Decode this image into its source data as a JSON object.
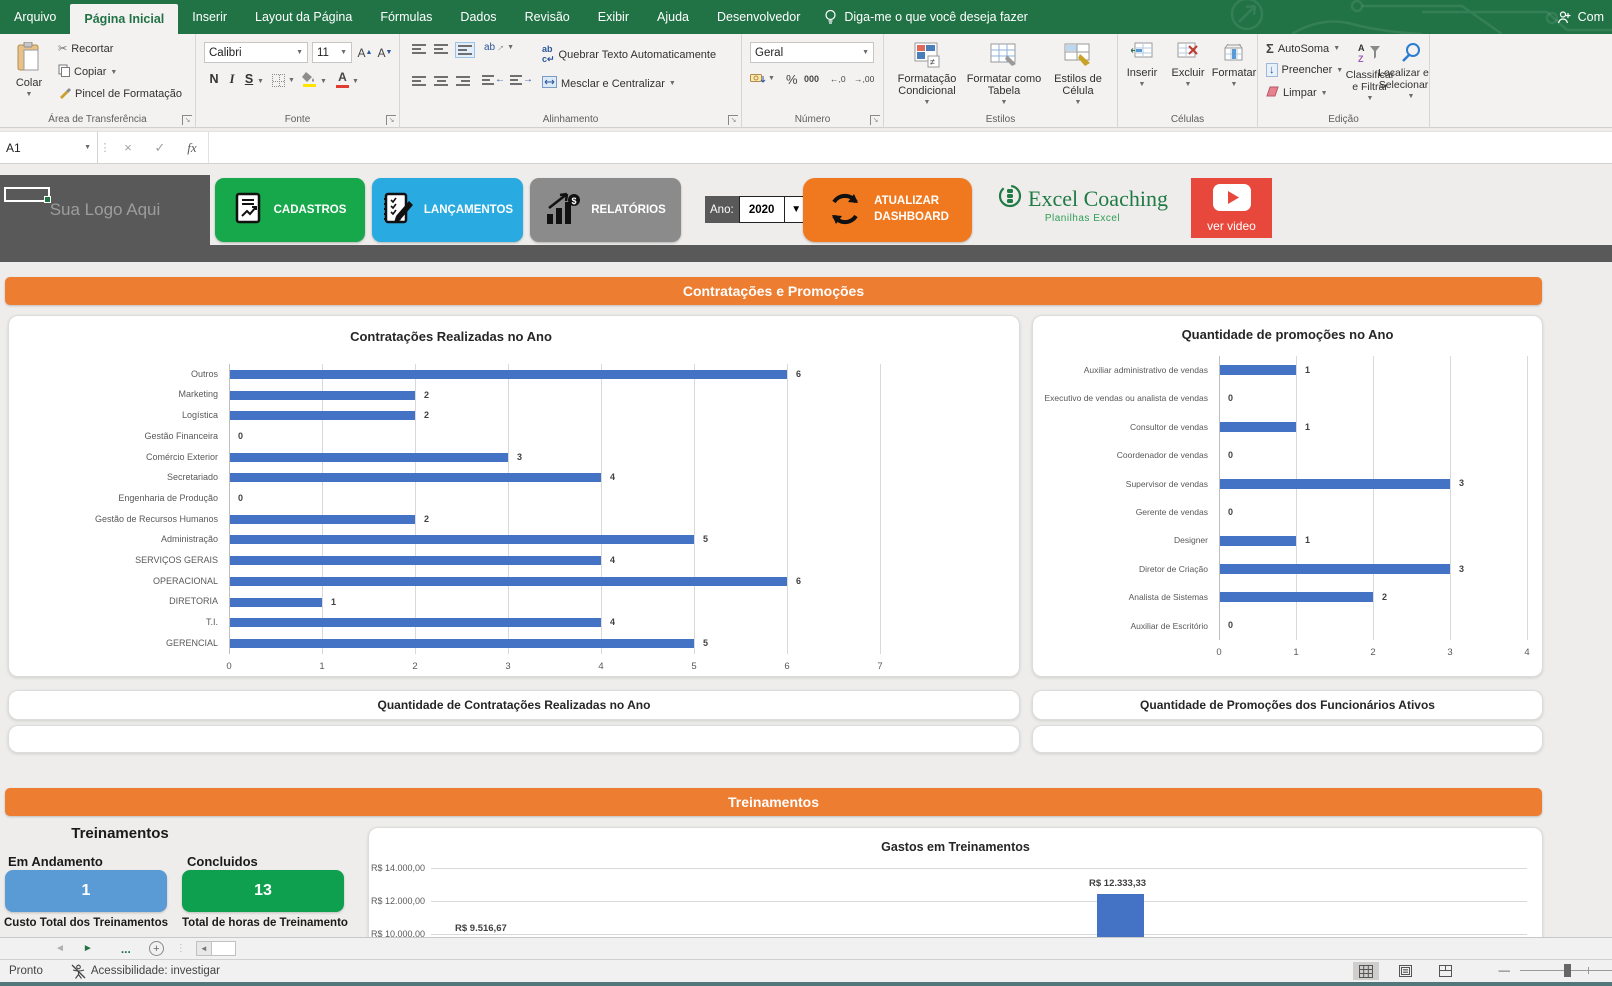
{
  "colors": {
    "excel_green": "#217346",
    "orange_banner": "#ED7D31",
    "bar_blue": "#4472C4",
    "dark_gray": "#595959",
    "btn_green": "#17A84B",
    "btn_blue": "#29ABE2",
    "btn_gray": "#8B8B8B",
    "btn_orange": "#F0791F",
    "btn_red": "#E8483C",
    "stat_blue": "#5B9BD5",
    "stat_green": "#0EA04E"
  },
  "titlebar": {
    "tabs": [
      "Arquivo",
      "Página Inicial",
      "Inserir",
      "Layout da Página",
      "Fórmulas",
      "Dados",
      "Revisão",
      "Exibir",
      "Ajuda",
      "Desenvolvedor"
    ],
    "active_tab": "Página Inicial",
    "tell_me": "Diga-me o que você deseja fazer",
    "share": "Com"
  },
  "ribbon": {
    "clipboard": {
      "paste": "Colar",
      "cut": "Recortar",
      "copy": "Copiar",
      "painter": "Pincel de Formatação",
      "label": "Área de Transferência"
    },
    "font": {
      "family": "Calibri",
      "size": "11",
      "bold": "N",
      "italic": "I",
      "underline": "S",
      "label": "Fonte"
    },
    "alignment": {
      "wrap": "Quebrar Texto Automaticamente",
      "merge": "Mesclar e Centralizar",
      "label": "Alinhamento"
    },
    "number": {
      "format": "Geral",
      "percent": "%",
      "thousands": "000",
      "inc_dec": "←,0",
      "dec_dec": "→,00",
      "label": "Número"
    },
    "styles": {
      "conditional": "Formatação Condicional",
      "table": "Formatar como Tabela",
      "cell": "Estilos de Célula",
      "label": "Estilos"
    },
    "cells": {
      "insert": "Inserir",
      "delete": "Excluir",
      "format": "Formatar",
      "label": "Células"
    },
    "editing": {
      "autosum": "AutoSoma",
      "fill": "Preencher",
      "clear": "Limpar",
      "sort": "Classificar e Filtrar",
      "find": "Localizar e Selecionar",
      "sigma": "Σ",
      "label": "Edição"
    }
  },
  "formula_bar": {
    "name_box": "A1",
    "cancel": "×",
    "enter": "✓",
    "fx": "fx",
    "value": ""
  },
  "dashboard": {
    "logo_placeholder": "Sua Logo Aqui",
    "buttons": {
      "cadastros": "CADASTROS",
      "lancamentos": "LANÇAMENTOS",
      "relatorios": "RELATÓRIOS",
      "atualizar_line1": "ATUALIZAR",
      "atualizar_line2": "DASHBOARD",
      "ver_video": "ver video"
    },
    "year": {
      "label": "Ano:",
      "value": "2020"
    },
    "brand": {
      "name": "Excel Coaching",
      "subtitle": "Planilhas Excel"
    },
    "section1": "Contratações e Promoções",
    "section2": "Treinamentos",
    "subtitle_left": "Quantidade de Contratações Realizadas no Ano",
    "subtitle_right": "Quantidade de Promoções dos Funcionários Ativos"
  },
  "chart_data": [
    {
      "type": "bar",
      "orientation": "horizontal",
      "title": "Contratações Realizadas no Ano",
      "categories": [
        "Outros",
        "Marketing",
        "Logística",
        "Gestão Financeira",
        "Comércio Exterior",
        "Secretariado",
        "Engenharia de Produção",
        "Gestão de Recursos Humanos",
        "Administração",
        "SERVIÇOS GERAIS",
        "OPERACIONAL",
        "DIRETORIA",
        "T.I.",
        "GERENCIAL"
      ],
      "values": [
        6,
        2,
        2,
        0,
        3,
        4,
        0,
        2,
        5,
        4,
        6,
        1,
        4,
        5
      ],
      "xlim": [
        0,
        7
      ],
      "grid": true,
      "bar_color": "#4472C4",
      "data_labels": true
    },
    {
      "type": "bar",
      "orientation": "horizontal",
      "title": "Quantidade de promoções no Ano",
      "categories": [
        "Auxiliar administrativo de vendas",
        "Executivo de vendas ou analista de vendas",
        "Consultor de vendas",
        "Coordenador de vendas",
        "Supervisor de vendas",
        "Gerente de vendas",
        "Designer",
        "Diretor de Criação",
        "Analista de Sistemas",
        "Auxiliar de Escritório"
      ],
      "values": [
        1,
        0,
        1,
        0,
        3,
        0,
        1,
        3,
        2,
        0
      ],
      "xlim": [
        0,
        4
      ],
      "grid": true,
      "bar_color": "#4472C4",
      "data_labels": true
    },
    {
      "type": "bar",
      "orientation": "vertical",
      "title": "Gastos em Treinamentos",
      "visible_yticks": [
        "R$ 14.000,00",
        "R$ 12.000,00",
        "R$ 10.000,00"
      ],
      "visible_data_labels": [
        "R$ 9.516,67",
        "R$ 12.333,33"
      ],
      "visible_values": [
        9516.67,
        12333.33
      ],
      "ylim_visible": [
        10000,
        14000
      ],
      "bar_color": "#4472C4",
      "note": "chart partially cut off at bottom of viewport"
    }
  ],
  "treinamentos": {
    "heading": "Treinamentos",
    "em_andamento_label": "Em Andamento",
    "em_andamento_value": "1",
    "concluidos_label": "Concluidos",
    "concluidos_value": "13",
    "custo_label": "Custo Total dos Treinamentos",
    "horas_label": "Total de horas de Treinamento"
  },
  "sheetbar": {
    "left_arrow": "◄",
    "right_arrow": "►",
    "ellipsis": "...",
    "scroll_left": "◄"
  },
  "statusbar": {
    "ready": "Pronto",
    "accessibility": "Acessibilidade: investigar",
    "zoom_minus": "—"
  }
}
